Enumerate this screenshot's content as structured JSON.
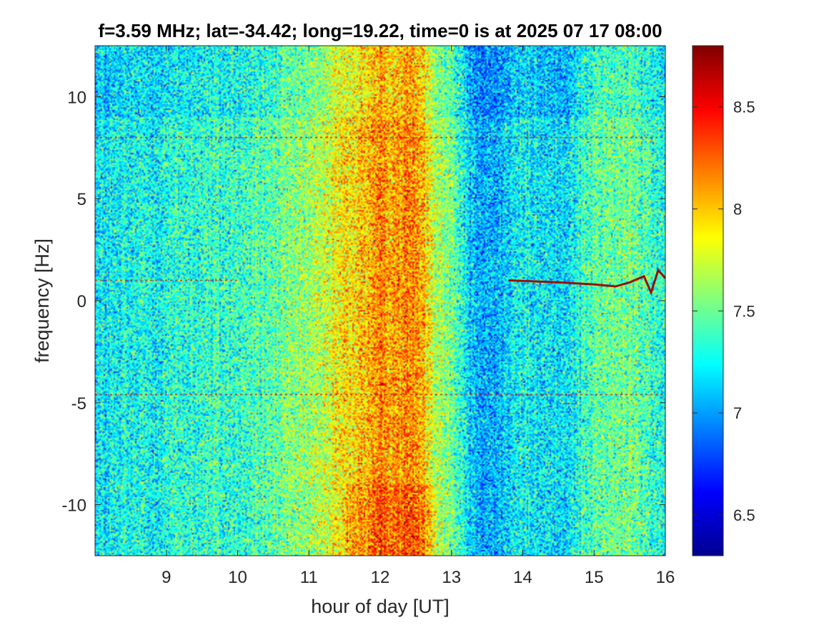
{
  "chart_data": {
    "type": "heatmap",
    "title": "f=3.59 MHz;  lat=-34.42; long=19.22, time=0 is at 2025 07 17 08:00",
    "xlabel": "hour of day [UT]",
    "ylabel": "frequency [Hz]",
    "xlim": [
      8,
      16
    ],
    "ylim": [
      -12.5,
      12.5
    ],
    "x_ticks": [
      9,
      10,
      11,
      12,
      13,
      14,
      15,
      16
    ],
    "x_tick_labels": [
      "9",
      "10",
      "11",
      "12",
      "13",
      "14",
      "15",
      "16"
    ],
    "y_ticks": [
      10,
      5,
      0,
      -5,
      -10
    ],
    "y_tick_labels": [
      "10",
      "5",
      "0",
      "-5",
      "-10"
    ],
    "colorbar": {
      "colormap": "jet",
      "clim": [
        6.3,
        8.8
      ],
      "ticks": [
        8.5,
        8,
        7.5,
        7,
        6.5
      ],
      "tick_labels": [
        "8.5",
        "8",
        "7.5",
        "7",
        "6.5"
      ]
    },
    "grid": false,
    "time_profile": {
      "hours": [
        8.0,
        8.5,
        9.0,
        9.5,
        10.0,
        10.5,
        11.0,
        11.5,
        12.0,
        12.5,
        12.8,
        13.0,
        13.3,
        13.6,
        14.0,
        14.5,
        15.0,
        15.5,
        16.0
      ],
      "mean_level": [
        7.2,
        7.25,
        7.3,
        7.35,
        7.35,
        7.45,
        7.6,
        7.9,
        8.1,
        8.15,
        7.7,
        7.55,
        7.1,
        7.05,
        7.25,
        7.15,
        7.45,
        7.5,
        7.3
      ]
    },
    "features": [
      {
        "kind": "horizontal-line",
        "frequency_hz": 8.0,
        "hours": [
          8.0,
          16.0
        ]
      },
      {
        "kind": "horizontal-line",
        "frequency_hz": 1.0,
        "hours": [
          8.0,
          10.0
        ]
      },
      {
        "kind": "horizontal-line",
        "frequency_hz": -4.6,
        "hours": [
          8.0,
          16.0
        ]
      },
      {
        "kind": "doppler-trace",
        "hours": [
          13.8,
          14.5,
          15.0,
          15.3,
          15.5,
          15.7,
          15.8,
          15.9,
          16.0
        ],
        "frequency_hz": [
          1.0,
          0.9,
          0.8,
          0.7,
          0.9,
          1.2,
          0.4,
          1.5,
          1.1
        ]
      }
    ]
  }
}
